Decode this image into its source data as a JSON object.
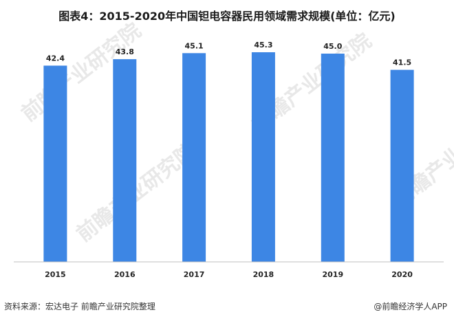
{
  "title": "图表4：2015-2020年中国钽电容器民用领域需求规模(单位：亿元)",
  "watermark_text": "前瞻产业研究院",
  "source": {
    "left": "资料来源：宏达电子 前瞻产业研究院整理",
    "right": "@前瞻经济学人APP"
  },
  "colors": {
    "bar": "#3d86e4",
    "axis": "#bfbfbf",
    "watermark": "#e8e8e8"
  },
  "chart_data": {
    "type": "bar",
    "title": "图表4：2015-2020年中国钽电容器民用领域需求规模(单位：亿元)",
    "xlabel": "",
    "ylabel": "",
    "categories": [
      "2015",
      "2016",
      "2017",
      "2018",
      "2019",
      "2020"
    ],
    "values": [
      42.4,
      43.8,
      45.1,
      45.3,
      45.0,
      41.5
    ],
    "value_labels": [
      "42.4",
      "43.8",
      "45.1",
      "45.3",
      "45.0",
      "41.5"
    ],
    "ylim": [
      0,
      45.3
    ],
    "grid": false,
    "legend": "none"
  }
}
